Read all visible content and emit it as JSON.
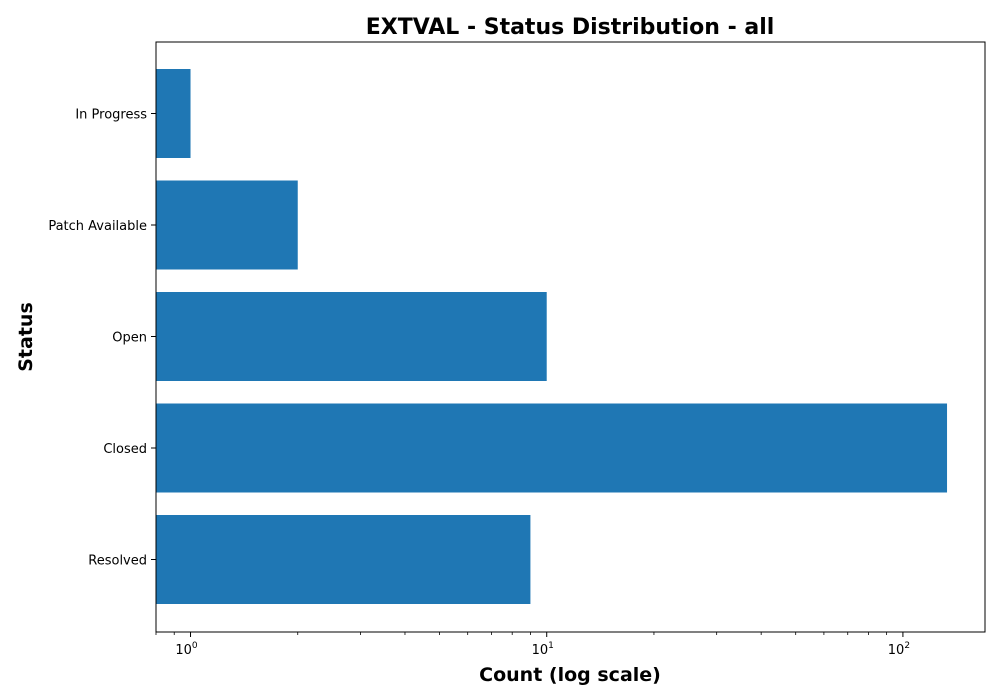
{
  "chart_data": {
    "type": "bar",
    "orientation": "horizontal",
    "title": "EXTVAL - Status Distribution - all",
    "xlabel": "Count (log scale)",
    "ylabel": "Status",
    "x_scale": "log",
    "xlim": [
      0.8,
      170
    ],
    "x_ticks": [
      {
        "value": 1,
        "base": "10",
        "exp": "0"
      },
      {
        "value": 10,
        "base": "10",
        "exp": "1"
      },
      {
        "value": 100,
        "base": "10",
        "exp": "2"
      }
    ],
    "categories": [
      "In Progress",
      "Patch Available",
      "Open",
      "Closed",
      "Resolved"
    ],
    "values": [
      1,
      2,
      10,
      133,
      9
    ],
    "bar_color": "#1f77b4",
    "grid": false,
    "legend": "none"
  }
}
